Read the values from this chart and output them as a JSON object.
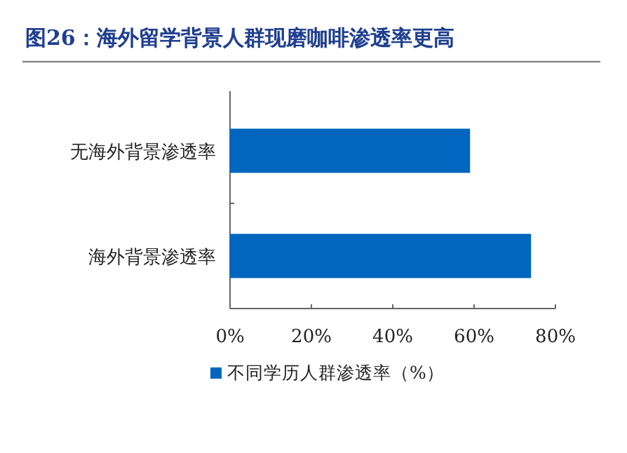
{
  "chart_data": {
    "type": "bar",
    "orientation": "horizontal",
    "title": "图26：海外留学背景人群现磨咖啡渗透率更高",
    "categories": [
      "无海外背景渗透率",
      "海外背景渗透率"
    ],
    "series": [
      {
        "name": "不同学历人群渗透率（%）",
        "color": "#0066bf",
        "values": [
          59,
          74
        ]
      }
    ],
    "xlim": [
      0,
      80
    ],
    "xticks": [
      {
        "value": 0,
        "label": "0%"
      },
      {
        "value": 20,
        "label": "20%"
      },
      {
        "value": 40,
        "label": "40%"
      },
      {
        "value": 60,
        "label": "60%"
      },
      {
        "value": 80,
        "label": "80%"
      }
    ],
    "grid": false,
    "legend": "bottom"
  }
}
